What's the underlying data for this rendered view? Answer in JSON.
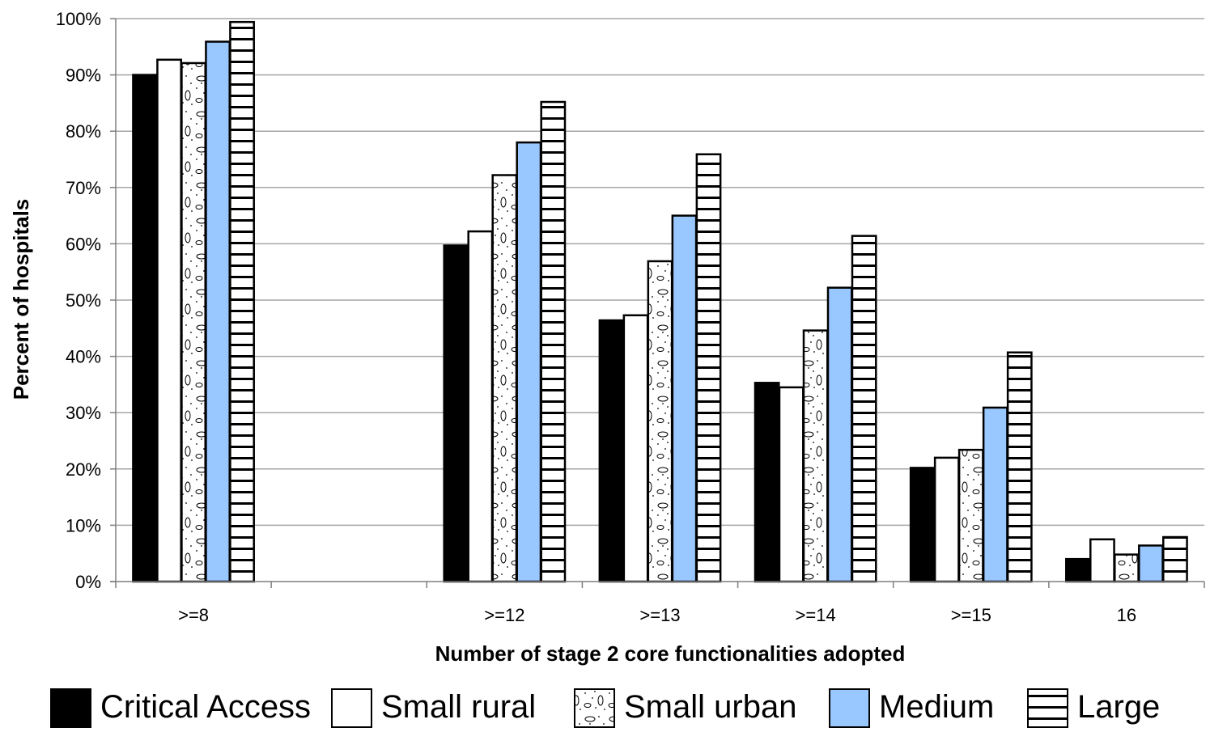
{
  "chart_data": {
    "type": "bar",
    "title": "",
    "xlabel": "Number of stage 2 core functionalities adopted",
    "ylabel": "Percent of hospitals",
    "ylim": [
      0,
      100
    ],
    "y_ticks": [
      0,
      10,
      20,
      30,
      40,
      50,
      60,
      70,
      80,
      90,
      100
    ],
    "y_tick_suffix": "%",
    "grid": true,
    "legend_position": "bottom",
    "categories": [
      ">=8",
      "",
      ">=12",
      ">=13",
      ">=14",
      ">=15",
      "16"
    ],
    "series": [
      {
        "name": "Critical Access",
        "pattern": "solid-black",
        "color": "#000000",
        "values": [
          90,
          null,
          59.7,
          46.4,
          35.3,
          20.2,
          4
        ]
      },
      {
        "name": "Small rural",
        "pattern": "solid-white",
        "color": "#ffffff",
        "values": [
          92.7,
          null,
          62.2,
          47.3,
          34.5,
          22,
          7.5
        ]
      },
      {
        "name": "Small urban",
        "pattern": "dots-ellipses",
        "color": "#ffffff",
        "values": [
          92.1,
          null,
          72.2,
          56.9,
          44.6,
          23.4,
          4.8
        ]
      },
      {
        "name": "Medium",
        "pattern": "solid-blue",
        "color": "#99c7ff",
        "values": [
          95.9,
          null,
          78,
          65,
          52.2,
          30.9,
          6.4
        ]
      },
      {
        "name": "Large",
        "pattern": "horizontal-stripes",
        "color": "#ffffff",
        "values": [
          99.4,
          null,
          85.2,
          75.9,
          61.4,
          40.7,
          7.9
        ]
      }
    ]
  }
}
